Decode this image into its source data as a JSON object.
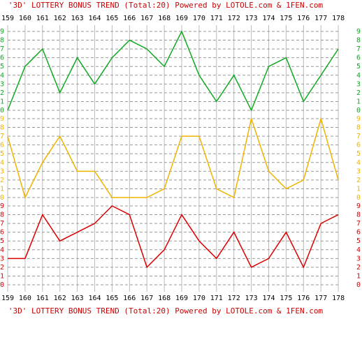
{
  "chart_data": {
    "type": "line",
    "title": "'3D' LOTTERY BONUS TREND (Total:20)  Powered by LOTOLE.com & 1FEN.com",
    "categories": [
      "159",
      "160",
      "161",
      "162",
      "163",
      "164",
      "165",
      "166",
      "167",
      "168",
      "169",
      "170",
      "171",
      "172",
      "173",
      "174",
      "175",
      "176",
      "177",
      "178"
    ],
    "ylim": [
      0,
      9
    ],
    "yticks": [
      0,
      1,
      2,
      3,
      4,
      5,
      6,
      7,
      8,
      9
    ],
    "grid": true,
    "series": [
      {
        "color": "#11aa22",
        "values": [
          0,
          5,
          7,
          2,
          6,
          3,
          6,
          8,
          7,
          5,
          9,
          4,
          1,
          4,
          0,
          5,
          6,
          1,
          4,
          7
        ]
      },
      {
        "color": "#f0b400",
        "values": [
          7,
          0,
          4,
          7,
          3,
          3,
          0,
          0,
          0,
          1,
          7,
          7,
          1,
          0,
          9,
          3,
          1,
          2,
          9,
          2
        ]
      },
      {
        "color": "#dd0000",
        "values": [
          3,
          3,
          8,
          5,
          6,
          7,
          9,
          8,
          2,
          4,
          8,
          5,
          3,
          6,
          2,
          3,
          6,
          2,
          7,
          8
        ]
      }
    ]
  }
}
